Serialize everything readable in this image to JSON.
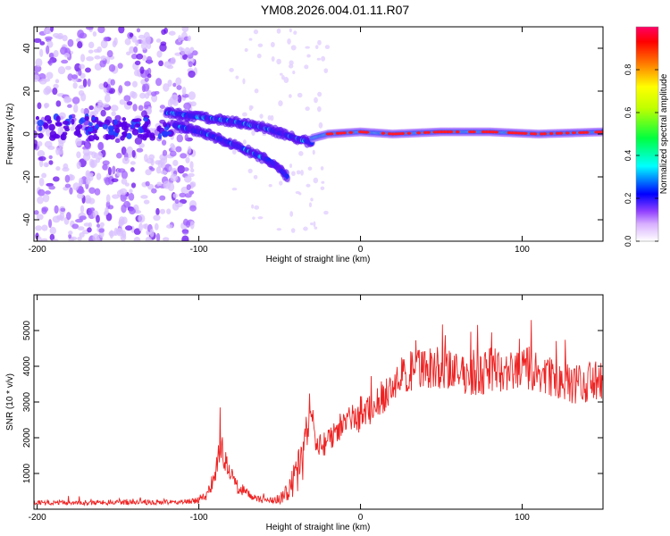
{
  "title": "YM08.2026.004.01.11.R07",
  "chart_data": [
    {
      "type": "heatmap",
      "title": "YM08.2026.004.01.11.R07",
      "xlabel": "Height of straight line (km)",
      "ylabel": "Frequency (Hz)",
      "xlim": [
        -202,
        150
      ],
      "ylim": [
        -50,
        50
      ],
      "x_ticks": [
        -200,
        -100,
        0,
        100
      ],
      "x_tick_labels": [
        "-200",
        "-100",
        "0",
        "100"
      ],
      "y_ticks": [
        -40,
        -20,
        0,
        20,
        40
      ],
      "y_tick_labels": [
        "-40",
        "-20",
        "0",
        "20",
        "40"
      ],
      "colorbar": {
        "label": "Normalized spectral amplitude",
        "range": [
          0,
          1
        ],
        "ticks": [
          0,
          0.2,
          0.4,
          0.6,
          0.8
        ],
        "tick_labels": [
          "0.0",
          "0.2",
          "0.4",
          "0.6",
          "0.8"
        ],
        "colors": [
          "#ffffff",
          "#b060ff",
          "#0000ff",
          "#00ffff",
          "#00ff00",
          "#ffff00",
          "#ff0000",
          "#ff0066"
        ]
      },
      "features": [
        {
          "name": "noise region",
          "x_range": [
            -202,
            -102
          ],
          "f_range": [
            -50,
            50
          ]
        },
        {
          "name": "descending trace A",
          "x": [
            -120,
            -100,
            -80,
            -60,
            -40,
            -30
          ],
          "f": [
            10,
            8,
            6,
            3,
            -2,
            -4
          ]
        },
        {
          "name": "descending trace B",
          "x": [
            -115,
            -95,
            -75,
            -55,
            -45
          ],
          "f": [
            4,
            0,
            -6,
            -13,
            -20
          ]
        },
        {
          "name": "stable carrier",
          "x": [
            -30,
            -20,
            0,
            20,
            50,
            80,
            110,
            150
          ],
          "f": [
            -2,
            0,
            1,
            0,
            1,
            1,
            0,
            1
          ]
        }
      ]
    },
    {
      "type": "line",
      "xlabel": "Height of straight line (km)",
      "ylabel": "SNR (10 * v/v)",
      "xlim": [
        -202,
        150
      ],
      "ylim": [
        0,
        6000
      ],
      "x_ticks": [
        -200,
        -100,
        0,
        100
      ],
      "x_tick_labels": [
        "-200",
        "-100",
        "0",
        "100"
      ],
      "y_ticks": [
        1000,
        2000,
        3000,
        4000,
        5000
      ],
      "y_tick_labels": [
        "1000",
        "2000",
        "3000",
        "4000",
        "5000"
      ],
      "series": [
        {
          "name": "SNR",
          "color": "#ee2222",
          "x": [
            -202,
            -180,
            -160,
            -140,
            -120,
            -110,
            -100,
            -95,
            -90,
            -87,
            -84,
            -80,
            -75,
            -70,
            -65,
            -60,
            -55,
            -50,
            -45,
            -40,
            -35,
            -32,
            -30,
            -28,
            -25,
            -20,
            -15,
            -10,
            -5,
            0,
            10,
            20,
            25,
            30,
            40,
            50,
            60,
            70,
            80,
            90,
            100,
            110,
            120,
            130,
            140,
            150
          ],
          "y": [
            180,
            190,
            185,
            200,
            190,
            200,
            250,
            400,
            900,
            1700,
            1400,
            900,
            600,
            450,
            300,
            250,
            250,
            300,
            500,
            900,
            1500,
            2500,
            3000,
            1900,
            1700,
            2000,
            2200,
            2400,
            2600,
            2500,
            3000,
            3400,
            3700,
            3800,
            4000,
            3950,
            3800,
            3700,
            3900,
            3800,
            3950,
            3850,
            3600,
            3500,
            3500,
            3600
          ],
          "noise_amplitude": [
            60,
            70,
            70,
            70,
            70,
            70,
            90,
            150,
            300,
            400,
            350,
            300,
            200,
            120,
            100,
            90,
            90,
            150,
            300,
            500,
            700,
            800,
            700,
            500,
            450,
            400,
            380,
            350,
            350,
            400,
            450,
            500,
            550,
            600,
            600,
            600,
            550,
            550,
            650,
            600,
            650,
            650,
            550,
            550,
            550,
            600
          ]
        }
      ]
    }
  ]
}
